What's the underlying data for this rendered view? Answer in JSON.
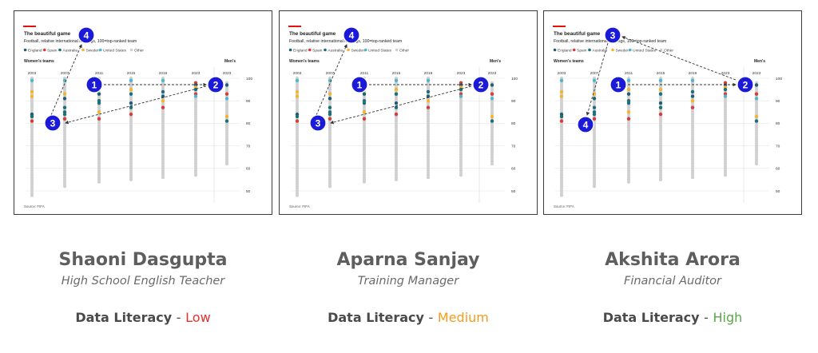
{
  "chart": {
    "title": "The beautiful game",
    "subtitle": "Football, relative international rankings, 100=top-ranked team",
    "legend": [
      {
        "name": "England",
        "color": "#1f5e73"
      },
      {
        "name": "Spain",
        "color": "#d93b3b"
      },
      {
        "name": "Australia",
        "color": "#1c6f78"
      },
      {
        "name": "Sweden",
        "color": "#f1b530"
      },
      {
        "name": "United States",
        "color": "#4bb8d0"
      },
      {
        "name": "Other",
        "color": "#cfcfcf"
      }
    ],
    "womens_label": "Women's teams",
    "mens_label": "Men's",
    "years": [
      "2003",
      "2007",
      "2011",
      "2015",
      "2019",
      "2023"
    ],
    "mens_year": "2023",
    "y_ticks": [
      "100",
      "90",
      "80",
      "70",
      "60",
      "50"
    ],
    "source": "Source: FIFA"
  },
  "panels": [
    {
      "name": "Shaoni Dasgupta",
      "role": "High School English Teacher",
      "literacy_label": "Data Literacy",
      "separator": "-",
      "literacy_level": "Low",
      "literacy_color": "#e0332a",
      "steps": [
        "1",
        "2",
        "3",
        "4"
      ]
    },
    {
      "name": "Aparna Sanjay",
      "role": "Training Manager",
      "literacy_label": "Data Literacy",
      "separator": "-",
      "literacy_level": "Medium",
      "literacy_color": "#f29c1f",
      "steps": [
        "1",
        "2",
        "3",
        "4"
      ]
    },
    {
      "name": "Akshita Arora",
      "role": "Financial Auditor",
      "literacy_label": "Data Literacy",
      "separator": "-",
      "literacy_level": "High",
      "literacy_color": "#5aa84a",
      "steps": [
        "1",
        "2",
        "3",
        "4"
      ]
    }
  ]
}
